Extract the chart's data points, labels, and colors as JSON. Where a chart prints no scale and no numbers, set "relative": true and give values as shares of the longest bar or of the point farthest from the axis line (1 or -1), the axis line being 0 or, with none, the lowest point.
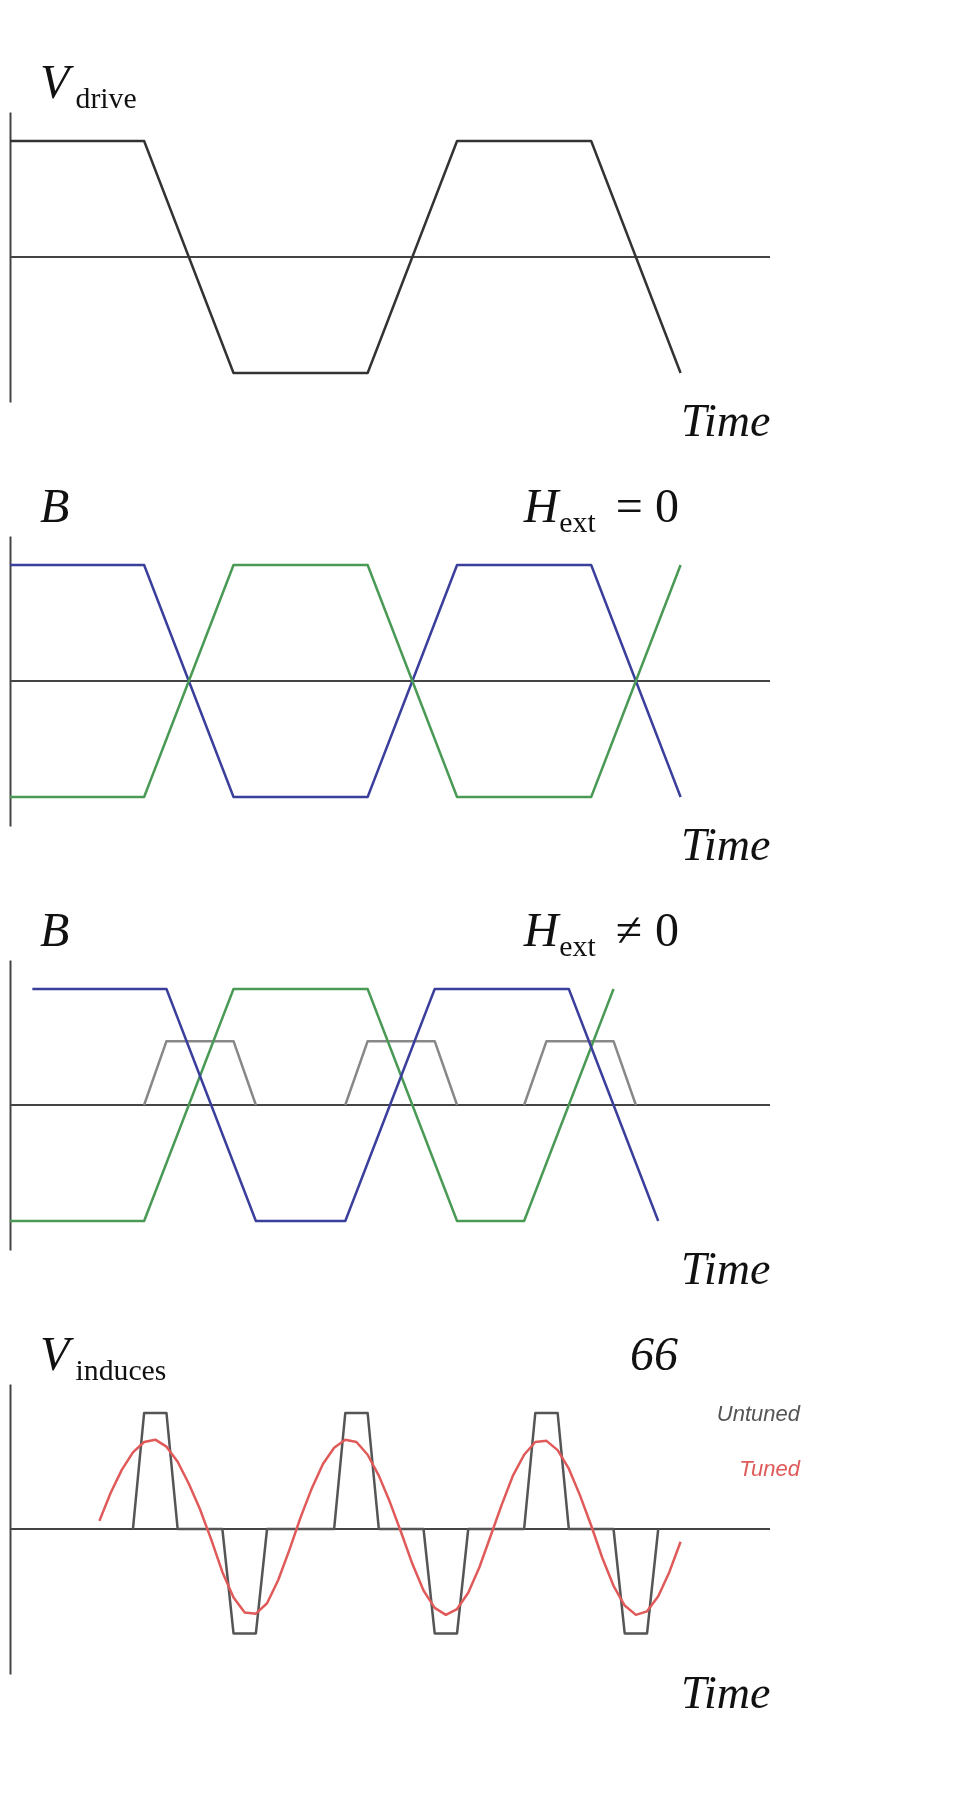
{
  "chart_data": [
    {
      "type": "line",
      "title": "V$_{drive}$",
      "xlabel": "Time",
      "relative": true,
      "categories": [
        null,
        null,
        null,
        null,
        null,
        null,
        null,
        null,
        null,
        null,
        null,
        null,
        null,
        null,
        null,
        null,
        null,
        null,
        null,
        null,
        null,
        null,
        null,
        null,
        null,
        null,
        null,
        null,
        null,
        null,
        null,
        null,
        null,
        null,
        null
      ],
      "series": [
        {
          "color": "#333333",
          "values": [
            1,
            1,
            1,
            1,
            1,
            1,
            1,
            0.5,
            0,
            -0.5,
            -1,
            -1,
            -1,
            -1,
            -1,
            -1,
            -1,
            -0.5,
            0,
            0.5,
            1,
            1,
            1,
            1,
            1,
            1,
            1,
            0.5,
            0,
            -0.5,
            -1,
            null,
            null,
            null,
            null
          ]
        }
      ]
    },
    {
      "type": "line",
      "title": "B",
      "xlabel": "Time",
      "relative": true,
      "annotations": [
        "H$_{ext}$ = 0"
      ],
      "categories": [
        null,
        null,
        null,
        null,
        null,
        null,
        null,
        null,
        null,
        null,
        null,
        null,
        null,
        null,
        null,
        null,
        null,
        null,
        null,
        null,
        null,
        null,
        null,
        null,
        null,
        null,
        null,
        null,
        null,
        null,
        null,
        null,
        null,
        null,
        null
      ],
      "series": [
        {
          "color": "#3b3f9c",
          "values": [
            1,
            1,
            1,
            1,
            1,
            1,
            1,
            0.5,
            0,
            -0.5,
            -1,
            -1,
            -1,
            -1,
            -1,
            -1,
            -1,
            -0.5,
            0,
            0.5,
            1,
            1,
            1,
            1,
            1,
            1,
            1,
            0.5,
            0,
            -0.5,
            -1,
            null,
            null,
            null,
            null
          ]
        },
        {
          "color": "#4a9a55",
          "values": [
            -1,
            -1,
            -1,
            -1,
            -1,
            -1,
            -1,
            -0.5,
            0,
            0.5,
            1,
            1,
            1,
            1,
            1,
            1,
            1,
            0.5,
            0,
            -0.5,
            -1,
            -1,
            -1,
            -1,
            -1,
            -1,
            -1,
            -0.5,
            0,
            0.5,
            1,
            null,
            null,
            null,
            null
          ]
        }
      ]
    },
    {
      "type": "line",
      "title": "B",
      "xlabel": "Time",
      "relative": true,
      "annotations": [
        "H$_{ext}$ ≠ 0"
      ],
      "categories": [
        null,
        null,
        null,
        null,
        null,
        null,
        null,
        null,
        null,
        null,
        null,
        null,
        null,
        null,
        null,
        null,
        null,
        null,
        null,
        null,
        null,
        null,
        null,
        null,
        null,
        null,
        null,
        null,
        null,
        null,
        null,
        null,
        null,
        null,
        null
      ],
      "series": [
        {
          "color": "#888888",
          "values": [
            null,
            null,
            null,
            null,
            null,
            null,
            0,
            0.55,
            0.55,
            0.55,
            0.55,
            0,
            null,
            null,
            null,
            0,
            0.55,
            0.55,
            0.55,
            0.55,
            0,
            null,
            null,
            0,
            0.55,
            0.55,
            0.55,
            0.55,
            0,
            null,
            null,
            null,
            null,
            null,
            null
          ]
        },
        {
          "color": "#4a9a55",
          "values": [
            -1,
            -1,
            -1,
            -1,
            -1,
            -1,
            -1,
            -0.5,
            0,
            0.5,
            1,
            1,
            1,
            1,
            1,
            1,
            1,
            0.5,
            0,
            -0.5,
            -1,
            -1,
            -1,
            -1,
            -0.5,
            0,
            0.5,
            1,
            null,
            null,
            null,
            null,
            null,
            null,
            null
          ]
        },
        {
          "color": "#3b3f9c",
          "values": [
            null,
            1,
            1,
            1,
            1,
            1,
            1,
            1,
            0.5,
            0,
            -0.5,
            -1,
            -1,
            -1,
            -1,
            -1,
            -0.5,
            0,
            0.5,
            1,
            1,
            1,
            1,
            1,
            1,
            1,
            0.5,
            0,
            -0.5,
            -1,
            null,
            null,
            null,
            null,
            null
          ]
        }
      ]
    },
    {
      "type": "line",
      "title": "V$_{induces}$",
      "xlabel": "Time",
      "relative": true,
      "annotations": [
        "66"
      ],
      "categories": [
        null,
        null,
        null,
        null,
        null,
        null,
        null,
        null,
        null,
        null,
        null,
        null,
        null,
        null,
        null,
        null,
        null,
        null,
        null,
        null,
        null,
        null,
        null,
        null,
        null,
        null,
        null,
        null,
        null,
        null,
        null,
        null,
        null,
        null,
        null,
        null,
        null,
        null,
        null,
        null,
        null,
        null,
        null,
        null,
        null,
        null,
        null,
        null,
        null,
        null,
        null,
        null,
        null,
        null,
        null,
        null,
        null,
        null,
        null,
        null,
        null,
        null,
        null,
        null,
        null,
        null,
        null,
        null,
        null
      ],
      "series": [
        {
          "name": "Untuned",
          "color": "#555555",
          "values": [
            null,
            null,
            null,
            null,
            null,
            null,
            null,
            null,
            null,
            null,
            null,
            0,
            1,
            1,
            1,
            0,
            0,
            0,
            0,
            0,
            -0.9,
            -0.9,
            -0.9,
            0,
            0,
            0,
            0,
            0,
            0,
            0,
            1,
            1,
            1,
            0,
            0,
            0,
            0,
            0,
            -0.9,
            -0.9,
            -0.9,
            0,
            0,
            0,
            0,
            0,
            0,
            1,
            1,
            1,
            0,
            0,
            0,
            0,
            0,
            -0.9,
            -0.9,
            -0.9,
            0,
            null,
            null,
            null,
            null,
            null,
            null,
            null,
            null,
            null,
            null
          ]
        },
        {
          "name": "Tuned",
          "color": "#e05a5a",
          "values": [
            null,
            null,
            null,
            null,
            null,
            null,
            null,
            null,
            0.07,
            0.31,
            0.51,
            0.66,
            0.75,
            0.77,
            0.71,
            0.58,
            0.39,
            0.17,
            -0.09,
            -0.37,
            -0.59,
            -0.72,
            -0.73,
            -0.64,
            -0.44,
            -0.18,
            0.1,
            0.35,
            0.56,
            0.7,
            0.77,
            0.75,
            0.64,
            0.46,
            0.23,
            -0.03,
            -0.3,
            -0.53,
            -0.68,
            -0.74,
            -0.69,
            -0.55,
            -0.33,
            -0.06,
            0.21,
            0.46,
            0.64,
            0.75,
            0.76,
            0.68,
            0.52,
            0.29,
            0.03,
            -0.25,
            -0.49,
            -0.66,
            -0.74,
            -0.71,
            -0.58,
            -0.37,
            -0.11,
            null,
            null,
            null,
            null,
            null,
            null,
            null,
            null
          ]
        }
      ]
    }
  ]
}
